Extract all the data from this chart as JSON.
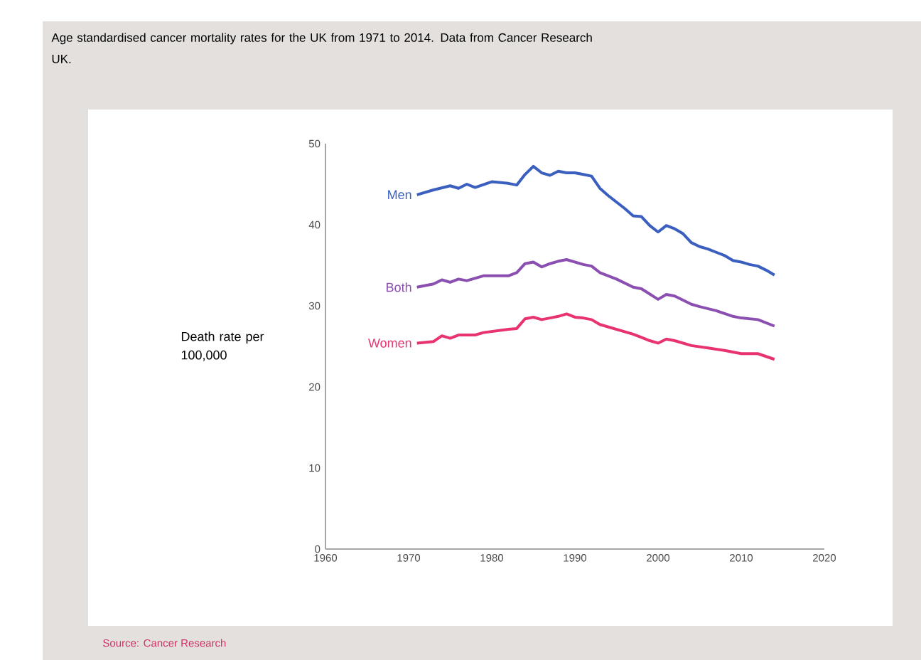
{
  "chart_data": {
    "type": "line",
    "title": "Age standardised cancer mortality rates for the UK from 1971 to 2014. Data  from Cancer Research UK.",
    "ylabel": "Death rate per 100,000",
    "xlim": [
      1960,
      2020
    ],
    "xticks": [
      1960,
      1970,
      1980,
      1990,
      2000,
      2010,
      2020
    ],
    "ylim": [
      0,
      50
    ],
    "yticks": [
      0,
      10,
      20,
      30,
      40,
      50
    ],
    "grid": false,
    "legend": false,
    "marker": "none",
    "line_style": "solid",
    "annotations": [
      "Source: Cancer Research"
    ],
    "series": [
      {
        "name": "Men",
        "color": "#3a5fbf",
        "x": [
          1971,
          1973,
          1975,
          1976,
          1977,
          1978,
          1980,
          1982,
          1983,
          1984,
          1985,
          1986,
          1987,
          1988,
          1989,
          1990,
          1991,
          1992,
          1993,
          1994,
          1995,
          1996,
          1997,
          1998,
          1999,
          2000,
          2001,
          2002,
          2003,
          2004,
          2005,
          2006,
          2007,
          2008,
          2009,
          2010,
          2011,
          2012,
          2013,
          2014
        ],
        "values": [
          43.7,
          44.3,
          44.8,
          44.5,
          45,
          44.6,
          45.3,
          45.1,
          44.9,
          46.2,
          47.2,
          46.4,
          46.1,
          46.6,
          46.4,
          46.4,
          46.2,
          46,
          44.5,
          43.6,
          42.8,
          42,
          41.1,
          41,
          39.9,
          39.1,
          39.9,
          39.5,
          38.9,
          37.8,
          37.3,
          37,
          36.6,
          36.2,
          35.6,
          35.4,
          35.1,
          34.9,
          34.4,
          33.8
        ]
      },
      {
        "name": "Both",
        "color": "#8a4fb0",
        "x": [
          1971,
          1973,
          1974,
          1975,
          1976,
          1977,
          1979,
          1982,
          1983,
          1984,
          1985,
          1986,
          1987,
          1988,
          1989,
          1990,
          1991,
          1992,
          1993,
          1995,
          1997,
          1998,
          2000,
          2001,
          2002,
          2004,
          2005,
          2007,
          2009,
          2010,
          2012,
          2014
        ],
        "values": [
          32.3,
          32.7,
          33.2,
          32.9,
          33.3,
          33.1,
          33.7,
          33.7,
          34.1,
          35.2,
          35.4,
          34.8,
          35.2,
          35.5,
          35.7,
          35.4,
          35.1,
          34.9,
          34.1,
          33.3,
          32.3,
          32.1,
          30.8,
          31.4,
          31.2,
          30.2,
          29.9,
          29.4,
          28.7,
          28.5,
          28.3,
          27.5
        ]
      },
      {
        "name": "Women",
        "color": "#e8336e",
        "x": [
          1971,
          1973,
          1974,
          1975,
          1976,
          1978,
          1979,
          1982,
          1983,
          1984,
          1985,
          1986,
          1987,
          1988,
          1989,
          1990,
          1991,
          1992,
          1993,
          1995,
          1997,
          1998,
          1999,
          2000,
          2001,
          2002,
          2004,
          2006,
          2008,
          2010,
          2012,
          2014
        ],
        "values": [
          25.4,
          25.6,
          26.3,
          26,
          26.4,
          26.4,
          26.7,
          27.1,
          27.2,
          28.4,
          28.6,
          28.3,
          28.5,
          28.7,
          29,
          28.6,
          28.5,
          28.3,
          27.7,
          27.1,
          26.5,
          26.1,
          25.7,
          25.4,
          25.9,
          25.7,
          25.1,
          24.8,
          24.5,
          24.1,
          24.1,
          23.4
        ]
      }
    ]
  }
}
